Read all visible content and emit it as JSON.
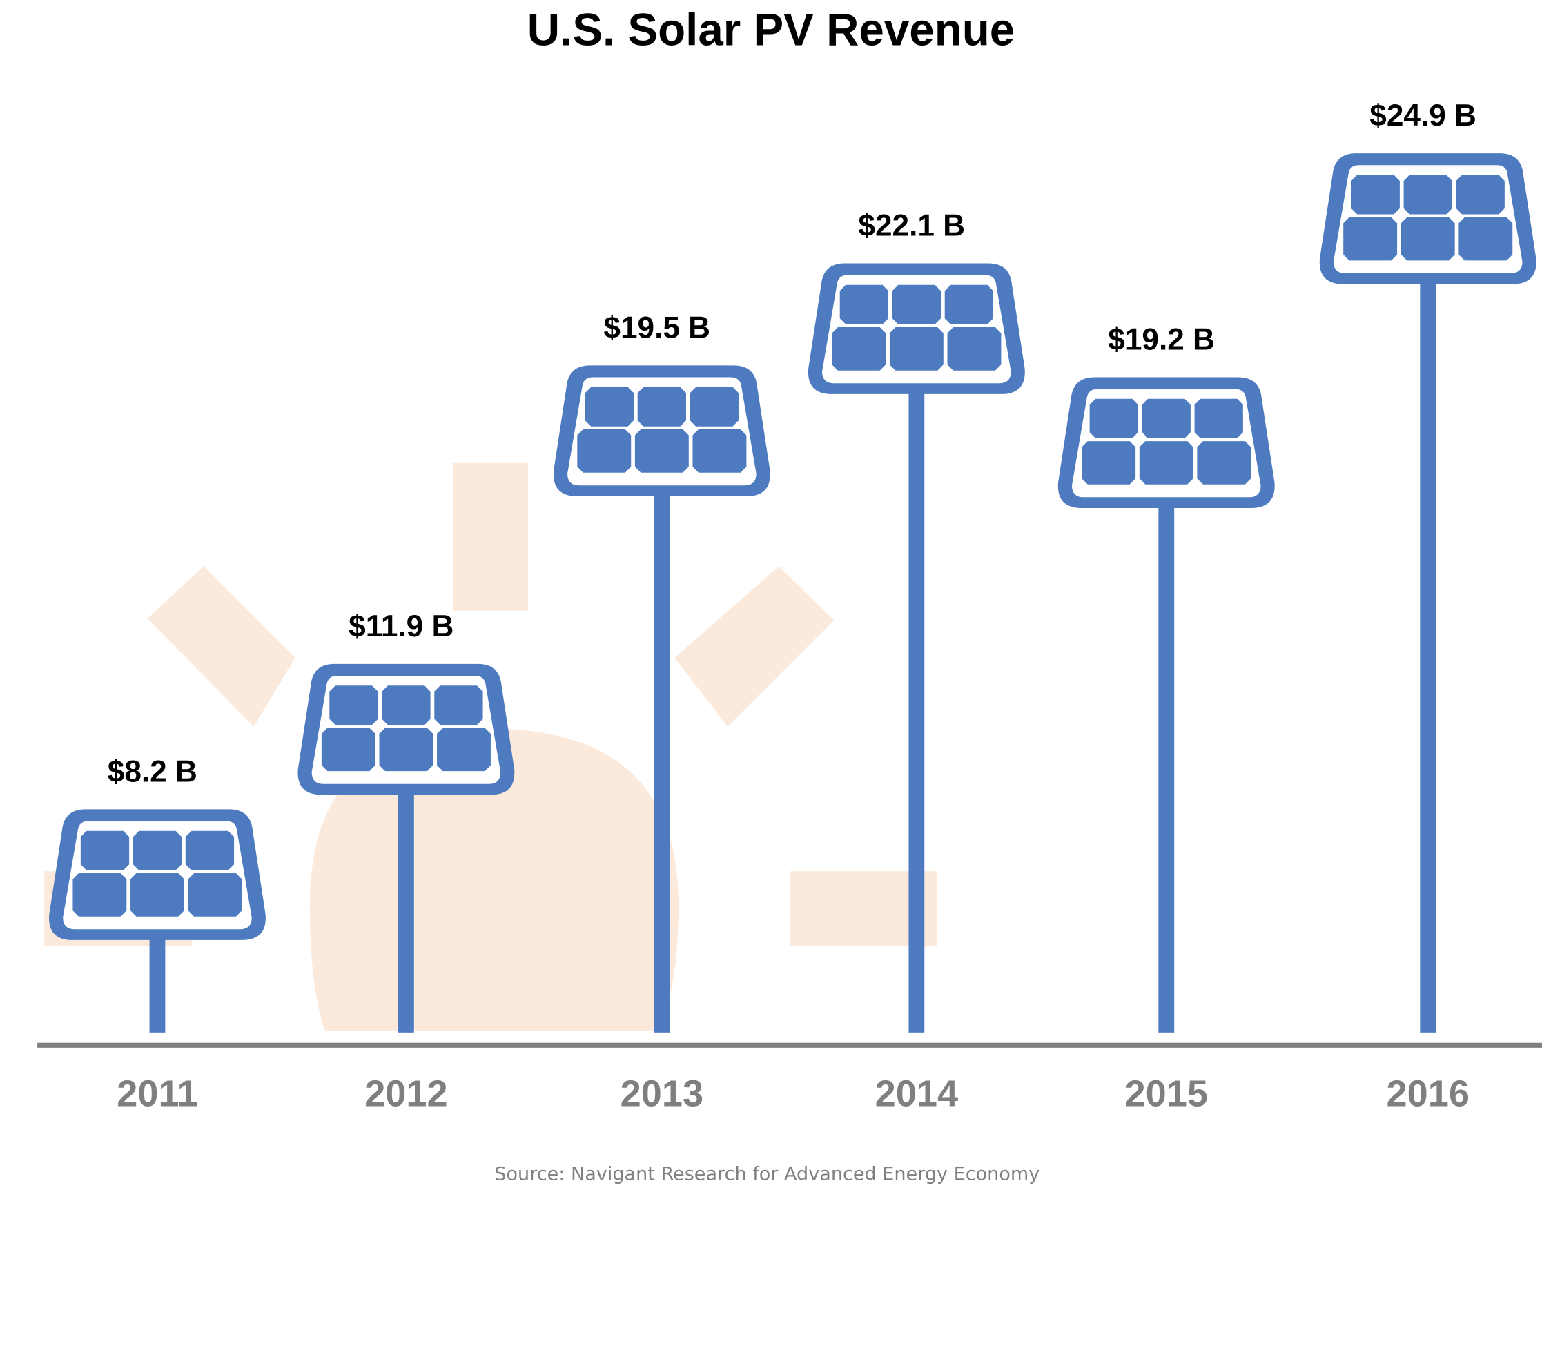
{
  "colors": {
    "panel": "#4e7bbf",
    "sun": "#fbeadb",
    "axis": "#808080",
    "year_text": "#7f7f7f",
    "label_text": "#000000"
  },
  "chart_data": {
    "type": "bar",
    "title": "U.S. Solar PV Revenue",
    "xlabel": "",
    "ylabel": "",
    "categories": [
      "2011",
      "2012",
      "2013",
      "2014",
      "2015",
      "2016"
    ],
    "values": [
      8.2,
      11.9,
      19.5,
      22.1,
      19.2,
      24.9
    ],
    "value_labels": [
      "$8.2 B",
      "$11.9 B",
      "$19.5 B",
      "$22.1 B",
      "$19.2 B",
      "$24.9 B"
    ],
    "units": "billion USD",
    "ylim": [
      0,
      24.9
    ],
    "grid": false,
    "legend": "none",
    "mark_style": "solar-panel-on-pole",
    "source": "Source: Navigant Research for Advanced Energy Economy"
  }
}
